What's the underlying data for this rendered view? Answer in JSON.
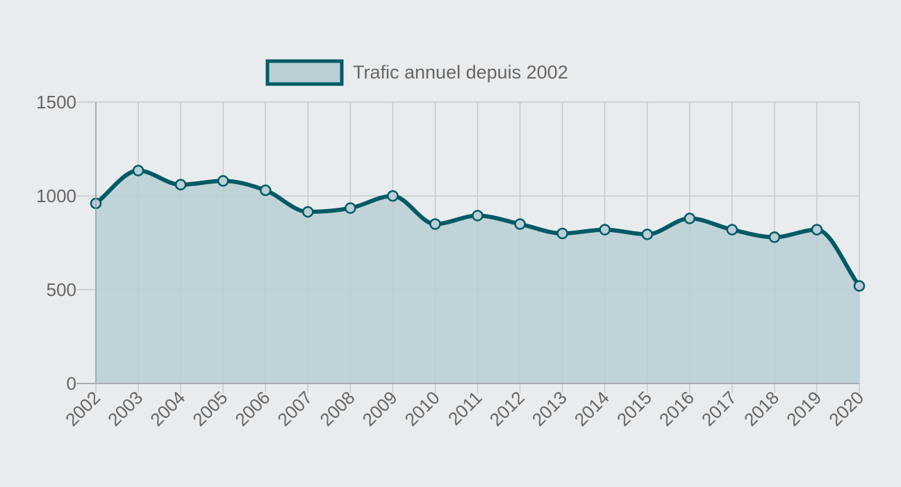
{
  "chart_data": {
    "type": "area",
    "title": "",
    "xlabel": "",
    "ylabel": "",
    "categories": [
      "2002",
      "2003",
      "2004",
      "2005",
      "2006",
      "2007",
      "2008",
      "2009",
      "2010",
      "2011",
      "2012",
      "2013",
      "2014",
      "2015",
      "2016",
      "2017",
      "2018",
      "2019",
      "2020"
    ],
    "series": [
      {
        "name": "Trafic annuel depuis 2002",
        "values": [
          960,
          1135,
          1060,
          1080,
          1030,
          915,
          935,
          1000,
          850,
          895,
          850,
          800,
          820,
          795,
          880,
          820,
          780,
          820,
          520
        ],
        "line_color": "#005a64",
        "fill_color": "#b9cfd5"
      }
    ],
    "ylim": [
      0,
      1500
    ],
    "y_ticks": [
      0,
      500,
      1000,
      1500
    ],
    "grid": true,
    "legend_position": "top-center",
    "colors": {
      "background": "#e8ecef",
      "grid": "#c5c9cc",
      "tick_text": "#666666"
    }
  }
}
